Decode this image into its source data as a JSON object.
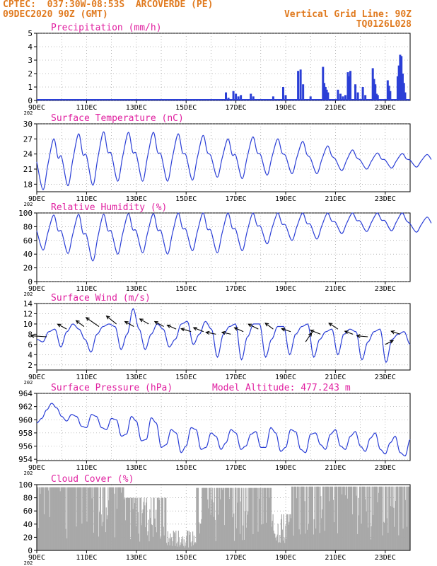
{
  "header": {
    "line1_left": "CPTEC:  037:30W-08:53S  ARCOVERDE (PE)",
    "line2_left": "09DEC2020 90Z (GMT)",
    "line2_right": "Vertical Grid Line: 90Z",
    "line3_right": "TQ0126L028"
  },
  "colors": {
    "header": "#e07a1f",
    "title": "#e020a0",
    "series": "#2b3fd6",
    "wind_arrow": "#000000",
    "cloud_fill": "#a8a8a8",
    "grid": "#888888"
  },
  "x_axis": {
    "start_label": "9DEC",
    "end_day": 24,
    "ticks": [
      "9DEC",
      "11DEC",
      "13DEC",
      "15DEC",
      "17DEC",
      "19DEC",
      "21DEC",
      "23DEC"
    ],
    "year_stub": "202"
  },
  "chart_data": [
    {
      "type": "bar",
      "title": "Precipitation (mm/h)",
      "ylim": [
        0,
        5
      ],
      "yticks": [
        "0",
        "1",
        "2",
        "3",
        "4",
        "5"
      ],
      "grid": true,
      "series": [
        {
          "x_days": [
            16.6,
            16.7,
            16.9,
            17.0,
            17.1,
            17.2,
            17.6,
            17.7,
            18.5,
            18.9,
            19.0,
            19.5,
            19.6,
            19.7,
            20.0,
            20.5,
            20.55,
            20.6,
            20.65,
            20.7,
            21.1,
            21.2,
            21.3,
            21.4,
            21.5,
            21.55,
            21.6,
            21.8,
            21.9,
            22.1,
            22.2,
            22.5,
            22.55,
            22.6,
            22.65,
            22.7,
            23.1,
            23.15,
            23.2,
            23.5,
            23.55,
            23.6,
            23.65,
            23.7,
            23.75,
            23.8
          ],
          "values": [
            0.6,
            0.2,
            0.7,
            0.5,
            0.3,
            0.4,
            0.5,
            0.3,
            0.3,
            1.0,
            0.4,
            2.2,
            2.3,
            1.2,
            0.3,
            2.5,
            1.3,
            1.0,
            0.8,
            0.6,
            0.8,
            0.5,
            0.3,
            0.4,
            2.1,
            1.8,
            2.2,
            1.2,
            0.6,
            1.0,
            0.4,
            2.4,
            1.6,
            1.2,
            0.5,
            0.4,
            1.5,
            1.1,
            0.7,
            1.8,
            2.6,
            3.4,
            3.3,
            2.0,
            1.3,
            0.6
          ]
        }
      ]
    },
    {
      "type": "line",
      "title": "Surface Temperature (nC)",
      "ylim": [
        16.5,
        30
      ],
      "yticks": [
        "18",
        "21",
        "24",
        "27",
        "30"
      ],
      "grid": true,
      "series": [
        {
          "name": "",
          "daily_max": [
            27.0,
            28.0,
            28.4,
            28.3,
            28.3,
            28.0,
            27.7,
            27.0,
            27.4,
            27.0,
            26.5,
            25.6,
            24.8,
            24.2,
            24.1,
            23.9
          ],
          "daily_min": [
            16.9,
            17.7,
            17.8,
            18.6,
            18.6,
            18.6,
            18.8,
            19.4,
            19.1,
            19.8,
            20.1,
            20.1,
            20.7,
            21.0,
            21.2,
            21.4
          ]
        }
      ]
    },
    {
      "type": "line",
      "title": "Relative Humidity (%)",
      "ylim": [
        0,
        100
      ],
      "yticks": [
        "0",
        "20",
        "40",
        "60",
        "80",
        "100"
      ],
      "grid": true,
      "series": [
        {
          "name": "",
          "daily_max": [
            97,
            98,
            98,
            99,
            99,
            100,
            100,
            100,
            100,
            100,
            100,
            100,
            100,
            100,
            100,
            94
          ],
          "daily_min": [
            46,
            41,
            30,
            40,
            42,
            40,
            45,
            42,
            45,
            55,
            60,
            62,
            70,
            73,
            74,
            72
          ]
        }
      ]
    },
    {
      "type": "line",
      "title": "Surface Wind (m/s)",
      "ylim": [
        1,
        14
      ],
      "yticks": [
        "2",
        "4",
        "6",
        "8",
        "10",
        "12",
        "14"
      ],
      "grid": true,
      "series": [
        {
          "name": "",
          "values": [
            7.0,
            6.5,
            8.5,
            9.0,
            5.5,
            8.5,
            10.0,
            9.0,
            7.0,
            4.5,
            8.0,
            9.5,
            10.0,
            9.5,
            5.0,
            8.0,
            13.0,
            9.0,
            5.0,
            8.0,
            10.0,
            9.0,
            5.5,
            7.0,
            10.0,
            10.5,
            6.0,
            8.0,
            10.5,
            9.0,
            3.5,
            8.0,
            9.5,
            10.0,
            3.0,
            7.5,
            10.0,
            10.0,
            3.5,
            7.0,
            9.5,
            9.5,
            4.0,
            8.0,
            9.5,
            10.0,
            3.5,
            7.0,
            8.5,
            9.0,
            4.0,
            8.0,
            9.0,
            8.5,
            3.0,
            6.5,
            8.5,
            9.0,
            2.5,
            7.0,
            8.0,
            8.5,
            6.0
          ]
        }
      ],
      "wind_arrows": [
        {
          "day": 9.4,
          "speed": 7.5,
          "u": -1.6,
          "v": 0.1
        },
        {
          "day": 10.2,
          "speed": 9.0,
          "u": -0.9,
          "v": 0.5
        },
        {
          "day": 10.9,
          "speed": 9.5,
          "u": -0.8,
          "v": 0.6
        },
        {
          "day": 11.5,
          "speed": 9.5,
          "u": -1.3,
          "v": 0.9
        },
        {
          "day": 12.2,
          "speed": 10.0,
          "u": -1.0,
          "v": 0.8
        },
        {
          "day": 12.9,
          "speed": 9.5,
          "u": -0.9,
          "v": 0.5
        },
        {
          "day": 13.5,
          "speed": 10.0,
          "u": -0.9,
          "v": 0.5
        },
        {
          "day": 14.1,
          "speed": 9.5,
          "u": -0.9,
          "v": 0.5
        },
        {
          "day": 14.6,
          "speed": 9.0,
          "u": -0.9,
          "v": 0.4
        },
        {
          "day": 15.2,
          "speed": 8.5,
          "u": -1.0,
          "v": 0.3
        },
        {
          "day": 15.7,
          "speed": 8.5,
          "u": -1.0,
          "v": 0.4
        },
        {
          "day": 16.2,
          "speed": 8.0,
          "u": -1.0,
          "v": 0.2
        },
        {
          "day": 16.8,
          "speed": 8.0,
          "u": -0.9,
          "v": 0.2
        },
        {
          "day": 17.3,
          "speed": 8.5,
          "u": -0.9,
          "v": 0.4
        },
        {
          "day": 17.9,
          "speed": 9.0,
          "u": -1.0,
          "v": 0.5
        },
        {
          "day": 18.5,
          "speed": 9.0,
          "u": -0.8,
          "v": 0.6
        },
        {
          "day": 19.2,
          "speed": 8.5,
          "u": -0.9,
          "v": 0.3
        },
        {
          "day": 19.8,
          "speed": 6.5,
          "u": 0.6,
          "v": 0.9
        },
        {
          "day": 20.4,
          "speed": 8.0,
          "u": -1.0,
          "v": 0.4
        },
        {
          "day": 21.1,
          "speed": 9.0,
          "u": -0.9,
          "v": 0.6
        },
        {
          "day": 21.7,
          "speed": 8.0,
          "u": -0.8,
          "v": 0.3
        },
        {
          "day": 22.3,
          "speed": 7.5,
          "u": -1.1,
          "v": 0.1
        },
        {
          "day": 23.0,
          "speed": 6.0,
          "u": 0.8,
          "v": 0.4
        },
        {
          "day": 23.6,
          "speed": 8.0,
          "u": -0.9,
          "v": 0.3
        }
      ]
    },
    {
      "type": "line",
      "title": "Surface Pressure (hPa)",
      "subtitle": "Model Altitude: 477.243 m",
      "ylim": [
        953.8,
        964
      ],
      "yticks": [
        "954",
        "956",
        "958",
        "960",
        "962",
        "964"
      ],
      "grid": true,
      "series": [
        {
          "name": "",
          "values": [
            959.5,
            960.2,
            961.5,
            962.5,
            961.8,
            960.5,
            959.8,
            960.8,
            960.5,
            959.0,
            958.8,
            960.8,
            960.5,
            958.8,
            958.5,
            960.2,
            960.0,
            957.5,
            957.8,
            960.5,
            959.8,
            956.8,
            957.0,
            960.3,
            959.5,
            955.8,
            956.2,
            958.5,
            958.0,
            955.0,
            956.0,
            958.8,
            958.5,
            955.5,
            955.8,
            958.0,
            957.5,
            955.5,
            956.5,
            958.5,
            958.0,
            955.5,
            956.0,
            957.8,
            958.2,
            955.8,
            955.8,
            958.8,
            958.0,
            955.2,
            955.8,
            958.5,
            958.2,
            955.5,
            955.0,
            957.8,
            958.0,
            956.2,
            955.5,
            957.8,
            958.5,
            956.0,
            955.5,
            957.5,
            958.2,
            956.0,
            955.2,
            957.2,
            958.0,
            955.5,
            954.8,
            956.5,
            957.5,
            955.0,
            954.5,
            957.0
          ]
        }
      ]
    },
    {
      "type": "area",
      "title": "Cloud Cover (%)",
      "ylim": [
        0,
        100
      ],
      "yticks": [
        "0",
        "20",
        "40",
        "60",
        "80",
        "100"
      ],
      "grid": true,
      "series": [
        {
          "name": "",
          "segments": [
            {
              "from_day": 9.0,
              "to_day": 12.5,
              "level": 96,
              "dip": 0.15
            },
            {
              "from_day": 12.5,
              "to_day": 14.2,
              "level": 80,
              "dip": 0.5
            },
            {
              "from_day": 14.2,
              "to_day": 15.4,
              "level": 30,
              "dip": 0.85
            },
            {
              "from_day": 15.4,
              "to_day": 18.4,
              "level": 95,
              "dip": 0.3
            },
            {
              "from_day": 18.4,
              "to_day": 19.2,
              "level": 55,
              "dip": 0.7
            },
            {
              "from_day": 19.2,
              "to_day": 24.0,
              "level": 97,
              "dip": 0.25
            }
          ]
        }
      ]
    }
  ]
}
